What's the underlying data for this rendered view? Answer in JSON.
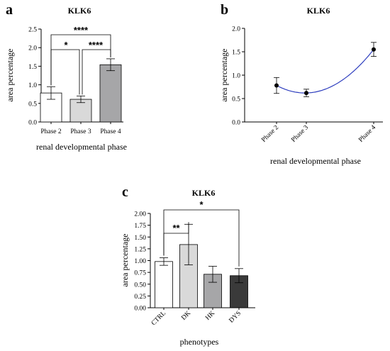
{
  "chart_data": [
    {
      "panel": "a",
      "type": "bar",
      "title": "KLK6",
      "xlabel": "renal developmental phase",
      "ylabel": "area percentage",
      "ylim": [
        0,
        2.5
      ],
      "yticks": [
        "0.0",
        "0.5",
        "1.0",
        "1.5",
        "2.0",
        "2.5"
      ],
      "categories": [
        "Phase 2",
        "Phase 3",
        "Phase 4"
      ],
      "values": [
        0.78,
        0.61,
        1.54
      ],
      "errors": [
        0.17,
        0.09,
        0.16
      ],
      "colors": [
        "#ffffff",
        "#d9d9d9",
        "#a6a6a8"
      ],
      "significance": [
        {
          "from": 0,
          "to": 2,
          "label": "****"
        },
        {
          "from": 0,
          "to": 1,
          "label": "*"
        },
        {
          "from": 1,
          "to": 2,
          "label": "****"
        }
      ]
    },
    {
      "panel": "b",
      "type": "line",
      "title": "KLK6",
      "xlabel": "renal developmental phase",
      "ylabel": "area percentage",
      "ylim": [
        0,
        2.0
      ],
      "yticks": [
        "0.0",
        "0.5",
        "1.0",
        "1.5",
        "2.0"
      ],
      "categories": [
        "Phase 2",
        "Phase 3",
        "Phase 4"
      ],
      "values": [
        0.78,
        0.62,
        1.55
      ],
      "errors": [
        0.17,
        0.08,
        0.15
      ],
      "line_color": "#2f3fbf"
    },
    {
      "panel": "c",
      "type": "bar",
      "title": "KLK6",
      "xlabel": "phenotypes",
      "ylabel": "area percentage",
      "ylim": [
        0,
        2.0
      ],
      "yticks": [
        "0.00",
        "0.25",
        "0.50",
        "0.75",
        "1.00",
        "1.25",
        "1.50",
        "1.75",
        "2.00"
      ],
      "categories": [
        "CTRL",
        "DK",
        "HK",
        "DYS"
      ],
      "values": [
        0.98,
        1.34,
        0.71,
        0.68
      ],
      "errors": [
        0.08,
        0.43,
        0.17,
        0.15
      ],
      "colors": [
        "#ffffff",
        "#d9d9d9",
        "#a6a6a8",
        "#3a3a3a"
      ],
      "significance": [
        {
          "from": 0,
          "to": 1,
          "label": "**"
        },
        {
          "from": 0,
          "to": 3,
          "label": "*"
        }
      ]
    }
  ]
}
